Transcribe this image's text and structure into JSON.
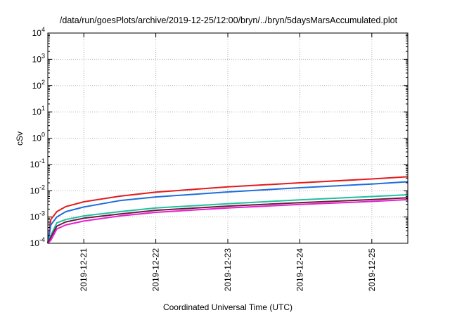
{
  "chart_data": {
    "type": "line",
    "title": "/data/run/goesPlots/archive/2019-12-25/12:00/bryn/../bryn/5daysMarsAccumulated.plot",
    "xlabel": "Coordinated Universal Time (UTC)",
    "ylabel": "cSv",
    "y_scale": "log",
    "ylim": [
      0.0001,
      10000
    ],
    "y_ticks": [
      {
        "base": "10",
        "exp": "-4",
        "value": 0.0001
      },
      {
        "base": "10",
        "exp": "-3",
        "value": 0.001
      },
      {
        "base": "10",
        "exp": "-2",
        "value": 0.01
      },
      {
        "base": "10",
        "exp": "-1",
        "value": 0.1
      },
      {
        "base": "10",
        "exp": "0",
        "value": 1
      },
      {
        "base": "10",
        "exp": "1",
        "value": 10
      },
      {
        "base": "10",
        "exp": "2",
        "value": 100
      },
      {
        "base": "10",
        "exp": "3",
        "value": 1000
      },
      {
        "base": "10",
        "exp": "4",
        "value": 10000
      }
    ],
    "xlim": [
      "2019-12-20T12:00",
      "2019-12-25T12:00"
    ],
    "x_ticks": [
      "2019-12-21",
      "2019-12-22",
      "2019-12-23",
      "2019-12-24",
      "2019-12-25"
    ],
    "grid": true,
    "x": [
      "2019-12-20T12:00",
      "2019-12-20T13:00",
      "2019-12-20T15:00",
      "2019-12-20T18:00",
      "2019-12-21T00:00",
      "2019-12-21T12:00",
      "2019-12-22T00:00",
      "2019-12-23T00:00",
      "2019-12-24T00:00",
      "2019-12-25T00:00",
      "2019-12-25T12:00"
    ],
    "series": [
      {
        "color": "#e41a1c",
        "values": [
          0.0001,
          0.0008,
          0.0016,
          0.0025,
          0.0038,
          0.0062,
          0.0088,
          0.014,
          0.02,
          0.028,
          0.034
        ]
      },
      {
        "color": "#1f6ddc",
        "values": [
          0.0001,
          0.0005,
          0.001,
          0.0016,
          0.0024,
          0.0042,
          0.0058,
          0.009,
          0.013,
          0.018,
          0.022
        ]
      },
      {
        "color": "#1fc0a0",
        "values": [
          0.0001,
          0.0002,
          0.0006,
          0.0008,
          0.0011,
          0.0016,
          0.0022,
          0.0032,
          0.0045,
          0.006,
          0.007
        ]
      },
      {
        "color": "#6a1a3a",
        "values": [
          0.0001,
          0.00017,
          0.00045,
          0.00065,
          0.0009,
          0.0013,
          0.0018,
          0.0026,
          0.0035,
          0.0046,
          0.0054
        ]
      },
      {
        "color": "#e61fd0",
        "values": [
          0.0001,
          0.00013,
          0.00035,
          0.0005,
          0.0007,
          0.0011,
          0.0015,
          0.0022,
          0.003,
          0.0039,
          0.0046
        ]
      }
    ]
  }
}
